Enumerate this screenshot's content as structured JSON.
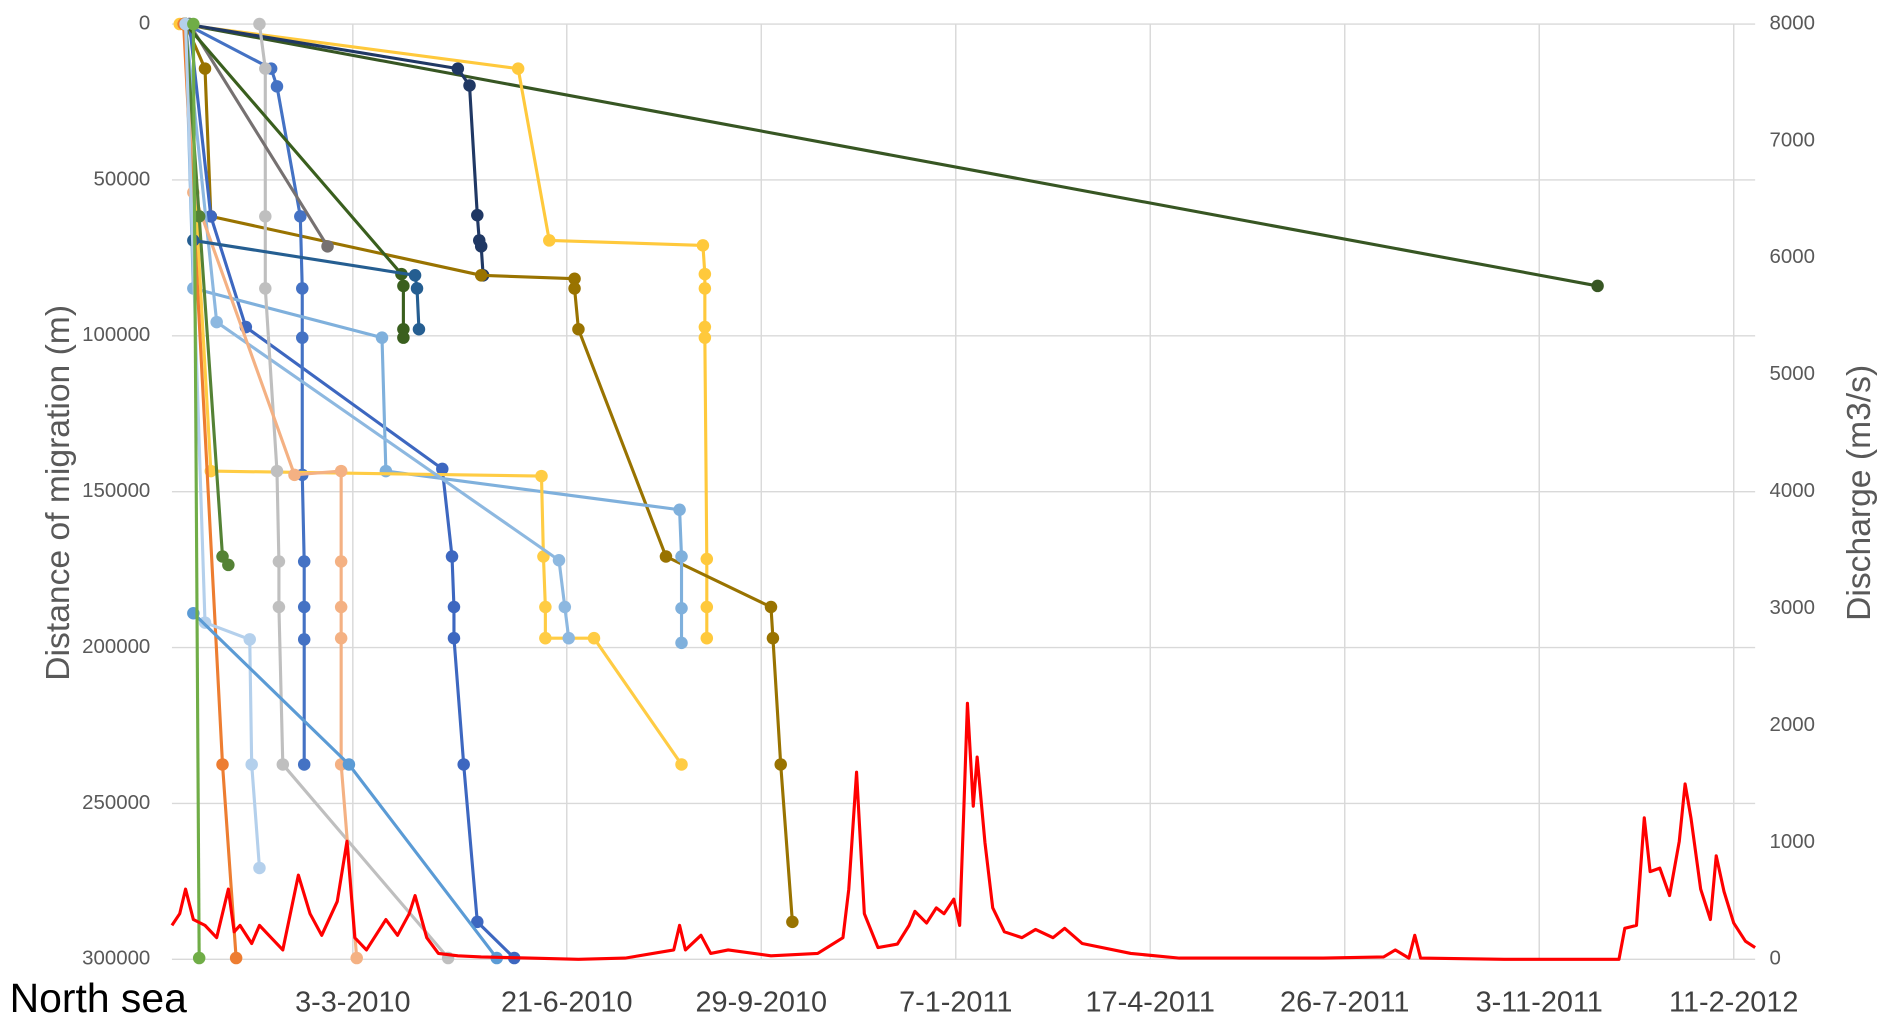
{
  "chart_data": {
    "type": "line",
    "y_label": "Distance of migration (m)",
    "y2_label": "Discharge  (m3/s)",
    "annotation": "North sea",
    "xlim": [
      "2009-11-30",
      "2012-02-22"
    ],
    "xticks": [
      {
        "value": "2010-03-03",
        "label": "3-3-2010"
      },
      {
        "value": "2010-06-21",
        "label": "21-6-2010"
      },
      {
        "value": "2010-09-29",
        "label": "29-9-2010"
      },
      {
        "value": "2011-01-07",
        "label": "7-1-2011"
      },
      {
        "value": "2011-04-17",
        "label": "17-4-2011"
      },
      {
        "value": "2011-07-26",
        "label": "26-7-2011"
      },
      {
        "value": "2011-11-03",
        "label": "3-11-2011"
      },
      {
        "value": "2012-02-11",
        "label": "11-2-2012"
      }
    ],
    "ylim": [
      0,
      300000
    ],
    "y_inverted": true,
    "yticks": [
      0,
      50000,
      100000,
      150000,
      200000,
      250000,
      300000
    ],
    "y2lim": [
      0,
      8000
    ],
    "y2ticks": [
      0,
      1000,
      2000,
      3000,
      4000,
      5000,
      6000,
      7000,
      8000
    ],
    "grid": true,
    "series": [
      {
        "color": "#375623",
        "x": [
          "2009-12-06",
          "2011-12-03"
        ],
        "values": [
          0,
          84000
        ]
      },
      {
        "color": "#ffc93c",
        "x": [
          "2009-12-04",
          "2010-05-27",
          "2010-06-12",
          "2010-08-30",
          "2010-08-31",
          "2010-08-31",
          "2010-08-31",
          "2010-08-31",
          "2010-09-01",
          "2010-09-01",
          "2010-09-01"
        ],
        "values": [
          0,
          14300,
          69400,
          71000,
          80200,
          84800,
          97200,
          100600,
          171600,
          187000,
          197000
        ]
      },
      {
        "color": "#203864",
        "x": [
          "2009-12-07",
          "2010-04-26",
          "2010-05-02",
          "2010-05-06",
          "2010-05-07",
          "2010-05-08",
          "2010-05-09"
        ],
        "values": [
          0,
          14300,
          19700,
          61300,
          69400,
          71300,
          80600
        ]
      },
      {
        "color": "#997300",
        "x": [
          "2009-12-07",
          "2009-12-17",
          "2009-12-20",
          "2010-05-08",
          "2010-06-25",
          "2010-06-25",
          "2010-06-27",
          "2010-08-11",
          "2010-10-04",
          "2010-10-05",
          "2010-10-09",
          "2010-10-15"
        ],
        "values": [
          0,
          14300,
          61700,
          80600,
          81700,
          84800,
          97900,
          170800,
          187000,
          197000,
          237500,
          288000
        ]
      },
      {
        "color": "#3d67c0",
        "x": [
          "2009-12-09",
          "2009-12-20",
          "2010-01-07",
          "2010-04-18",
          "2010-04-23",
          "2010-04-24",
          "2010-04-24",
          "2010-04-29",
          "2010-05-06",
          "2010-05-25"
        ],
        "values": [
          0,
          61700,
          97200,
          142700,
          170800,
          187000,
          197000,
          237500,
          288000,
          299600
        ]
      },
      {
        "color": "#4472c4",
        "x": [
          "2009-12-07",
          "2010-01-20",
          "2010-01-23",
          "2010-02-04",
          "2010-02-05",
          "2010-02-05",
          "2010-02-05",
          "2010-02-06",
          "2010-02-06",
          "2010-02-06",
          "2010-02-06"
        ],
        "values": [
          0,
          14300,
          20000,
          61700,
          84800,
          100600,
          144600,
          172400,
          187000,
          197400,
          237500
        ]
      },
      {
        "color": "#7fb0dc",
        "x": [
          "2009-12-07",
          "2009-12-11",
          "2010-03-18",
          "2010-03-20",
          "2010-08-18",
          "2010-08-19",
          "2010-08-19",
          "2010-08-19"
        ],
        "values": [
          0,
          84800,
          100600,
          143400,
          155800,
          170800,
          187400,
          198500
        ]
      },
      {
        "color": "#ffcc44",
        "x": [
          "2009-12-07",
          "2009-12-20",
          "2010-06-08",
          "2010-06-09",
          "2010-06-10",
          "2010-06-10",
          "2010-07-05",
          "2010-08-19"
        ],
        "values": [
          0,
          143400,
          145000,
          170800,
          187000,
          197000,
          197000,
          237500
        ]
      },
      {
        "color": "#8db8e0",
        "x": [
          "2009-12-07",
          "2009-12-23",
          "2010-06-17",
          "2010-06-20",
          "2010-06-22"
        ],
        "values": [
          0,
          95600,
          172000,
          187000,
          197000
        ]
      },
      {
        "color": "#bfbfbf",
        "x": [
          "2010-01-14",
          "2010-01-17",
          "2010-01-17",
          "2010-01-17",
          "2010-01-23",
          "2010-01-24",
          "2010-01-24",
          "2010-01-26",
          "2010-04-21"
        ],
        "values": [
          0,
          14300,
          61700,
          84800,
          143400,
          172400,
          187000,
          237500,
          299600
        ]
      },
      {
        "color": "#f4b183",
        "x": [
          "2009-12-07",
          "2009-12-11",
          "2010-02-01",
          "2010-02-25",
          "2010-02-25",
          "2010-02-25",
          "2010-02-25",
          "2010-02-25",
          "2010-03-05"
        ],
        "values": [
          0,
          54000,
          144600,
          143400,
          172400,
          187000,
          197000,
          237500,
          299600
        ]
      },
      {
        "color": "#767171",
        "x": [
          "2009-12-09",
          "2010-02-18"
        ],
        "values": [
          0,
          71300
        ]
      },
      {
        "color": "#548235",
        "x": [
          "2009-12-07",
          "2009-12-14",
          "2009-12-26",
          "2009-12-29"
        ],
        "values": [
          0,
          61700,
          170800,
          173500
        ]
      },
      {
        "color": "#3a5f1e",
        "x": [
          "2009-12-07",
          "2010-03-28",
          "2010-03-29",
          "2010-03-29",
          "2010-03-29"
        ],
        "values": [
          0,
          80200,
          84000,
          97900,
          100600
        ]
      },
      {
        "color": "#255e91",
        "x": [
          "2009-12-11",
          "2010-04-04",
          "2010-04-05",
          "2010-04-06"
        ],
        "values": [
          69400,
          80600,
          84800,
          97900
        ]
      },
      {
        "color": "#ed7d31",
        "x": [
          "2009-12-06",
          "2009-12-26",
          "2010-01-02"
        ],
        "values": [
          0,
          237500,
          299600
        ]
      },
      {
        "color": "#b4d0ec",
        "x": [
          "2009-12-07",
          "2009-12-17",
          "2010-01-09",
          "2010-01-10",
          "2010-01-14"
        ],
        "values": [
          0,
          192000,
          197400,
          237500,
          270700
        ]
      },
      {
        "color": "#5b9bd5",
        "x": [
          "2009-12-11",
          "2010-03-01",
          "2010-05-16"
        ],
        "values": [
          189000,
          237500,
          299600
        ]
      },
      {
        "color": "#70ad47",
        "x": [
          "2009-12-11",
          "2009-12-14"
        ],
        "values": [
          0,
          299600
        ]
      },
      {
        "color": "#ff0000",
        "axis": "y2",
        "markers": false,
        "x": [
          "2009-11-30",
          "2009-12-04",
          "2009-12-07",
          "2009-12-11",
          "2009-12-17",
          "2009-12-23",
          "2009-12-29",
          "2010-01-01",
          "2010-01-04",
          "2010-01-10",
          "2010-01-14",
          "2010-01-20",
          "2010-01-26",
          "2010-02-03",
          "2010-02-09",
          "2010-02-15",
          "2010-02-23",
          "2010-02-28",
          "2010-03-04",
          "2010-03-10",
          "2010-03-20",
          "2010-03-26",
          "2010-04-01",
          "2010-04-04",
          "2010-04-10",
          "2010-04-16",
          "2010-04-26",
          "2010-05-08",
          "2010-06-02",
          "2010-06-27",
          "2010-07-21",
          "2010-08-15",
          "2010-08-18",
          "2010-08-21",
          "2010-08-29",
          "2010-09-03",
          "2010-09-12",
          "2010-10-04",
          "2010-10-28",
          "2010-11-10",
          "2010-11-13",
          "2010-11-17",
          "2010-11-21",
          "2010-11-28",
          "2010-12-08",
          "2010-12-14",
          "2010-12-17",
          "2010-12-23",
          "2010-12-28",
          "2011-01-01",
          "2011-01-06",
          "2011-01-09",
          "2011-01-11",
          "2011-01-13",
          "2011-01-16",
          "2011-01-18",
          "2011-01-22",
          "2011-01-26",
          "2011-02-01",
          "2011-02-10",
          "2011-02-17",
          "2011-02-26",
          "2011-03-04",
          "2011-03-13",
          "2011-04-07",
          "2011-05-02",
          "2011-06-14",
          "2011-07-15",
          "2011-08-15",
          "2011-08-21",
          "2011-08-28",
          "2011-08-31",
          "2011-09-03",
          "2011-10-16",
          "2011-12-14",
          "2011-12-17",
          "2011-12-23",
          "2011-12-27",
          "2011-12-30",
          "2012-01-04",
          "2012-01-09",
          "2012-01-14",
          "2012-01-17",
          "2012-01-20",
          "2012-01-25",
          "2012-01-30",
          "2012-02-02",
          "2012-02-06",
          "2012-02-11",
          "2012-02-17",
          "2012-02-22"
        ],
        "values": [
          290,
          390,
          600,
          340,
          290,
          185,
          600,
          235,
          290,
          135,
          290,
          185,
          80,
          720,
          390,
          205,
          495,
          1010,
          185,
          80,
          340,
          205,
          390,
          545,
          185,
          50,
          30,
          20,
          10,
          0,
          10,
          80,
          290,
          80,
          205,
          50,
          80,
          30,
          50,
          185,
          600,
          1600,
          390,
          100,
          130,
          290,
          410,
          310,
          440,
          390,
          515,
          290,
          1210,
          2190,
          1310,
          1730,
          1000,
          440,
          235,
          185,
          255,
          185,
          265,
          135,
          50,
          10,
          10,
          10,
          20,
          80,
          10,
          205,
          10,
          0,
          0,
          265,
          290,
          1210,
          750,
          780,
          545,
          1010,
          1500,
          1210,
          600,
          340,
          885,
          580,
          310,
          155,
          100
        ]
      }
    ]
  }
}
